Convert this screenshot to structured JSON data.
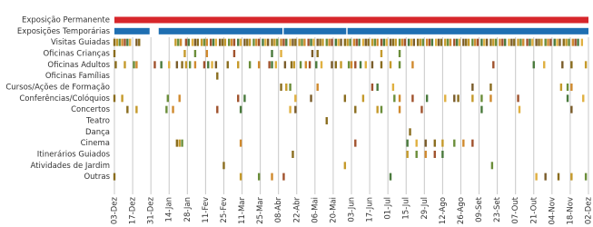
{
  "chart_data": {
    "type": "timeline",
    "xlim": [
      0,
      364
    ],
    "xticks": [
      {
        "value": 0,
        "label": "03-Dez"
      },
      {
        "value": 14,
        "label": "17-Dez"
      },
      {
        "value": 28,
        "label": "31-Dez"
      },
      {
        "value": 42,
        "label": "14-Jan"
      },
      {
        "value": 56,
        "label": "28-Jan"
      },
      {
        "value": 70,
        "label": "11-Fev"
      },
      {
        "value": 84,
        "label": "25-Fev"
      },
      {
        "value": 98,
        "label": "11-Mar"
      },
      {
        "value": 112,
        "label": "25-Mar"
      },
      {
        "value": 126,
        "label": "08-Abr"
      },
      {
        "value": 140,
        "label": "22-Abr"
      },
      {
        "value": 154,
        "label": "06-Mai"
      },
      {
        "value": 168,
        "label": "20-Mai"
      },
      {
        "value": 182,
        "label": "03-Jun"
      },
      {
        "value": 196,
        "label": "17-Jun"
      },
      {
        "value": 210,
        "label": "01-Jul"
      },
      {
        "value": 224,
        "label": "15-Jul"
      },
      {
        "value": 238,
        "label": "29-Jul"
      },
      {
        "value": 252,
        "label": "12-Ago"
      },
      {
        "value": 266,
        "label": "26-Ago"
      },
      {
        "value": 280,
        "label": "09-Set"
      },
      {
        "value": 294,
        "label": "23-Set"
      },
      {
        "value": 308,
        "label": "07-Out"
      },
      {
        "value": 322,
        "label": "21-Out"
      },
      {
        "value": 336,
        "label": "04-Nov"
      },
      {
        "value": 350,
        "label": "18-Nov"
      },
      {
        "value": 364,
        "label": "02-Dez"
      }
    ],
    "grid": true,
    "palette": [
      "#8a6d1f",
      "#c59a2b",
      "#6b8e3a",
      "#d08a2e",
      "#a0522d",
      "#4a7a3d",
      "#e0b040",
      "#7a5c2a"
    ],
    "series": [
      {
        "name": "Exposição Permanente",
        "color": "#d7262b",
        "segments": [
          [
            0,
            364
          ]
        ]
      },
      {
        "name": "Exposições Temporárias",
        "color": "#1f6fb2",
        "segments": [
          [
            0,
            27
          ],
          [
            34,
            129
          ],
          [
            130,
            178
          ],
          [
            179,
            364
          ]
        ]
      },
      {
        "name": "Visitas Guiadas",
        "events": [
          0,
          2,
          4,
          6,
          8,
          10,
          12,
          17,
          19,
          47,
          49,
          51,
          55,
          57,
          60,
          62,
          64,
          67,
          69,
          71,
          74,
          76,
          78,
          81,
          83,
          85,
          88,
          90,
          92,
          95,
          97,
          100,
          102,
          104,
          107,
          109,
          111,
          114,
          116,
          118,
          121,
          123,
          125,
          128,
          130,
          132,
          135,
          137,
          139,
          142,
          144,
          146,
          149,
          151,
          153,
          156,
          158,
          160,
          163,
          165,
          167,
          170,
          172,
          174,
          177,
          179,
          181,
          184,
          186,
          188,
          191,
          193,
          195,
          198,
          200,
          202,
          205,
          207,
          209,
          212,
          214,
          216,
          219,
          221,
          223,
          226,
          228,
          230,
          233,
          235,
          237,
          240,
          242,
          244,
          247,
          249,
          251,
          254,
          256,
          258,
          261,
          263,
          265,
          268,
          270,
          272,
          275,
          277,
          279,
          282,
          284,
          286,
          289,
          291,
          293,
          296,
          298,
          300,
          303,
          305,
          307,
          310,
          312,
          314,
          317,
          319,
          321,
          324,
          326,
          328,
          331,
          333,
          335,
          338,
          340,
          342,
          345,
          347,
          349,
          352,
          354,
          356,
          359
        ]
      },
      {
        "name": "Oficinas Crianças",
        "events": [
          0,
          54,
          62,
          71,
          92,
          121,
          128,
          152,
          156,
          205,
          219
        ]
      },
      {
        "name": "Oficinas Adultos",
        "events": [
          1,
          8,
          15,
          17,
          31,
          36,
          42,
          48,
          52,
          55,
          58,
          62,
          69,
          72,
          75,
          78,
          87,
          95,
          104,
          111,
          119,
          121,
          124,
          131,
          136,
          138,
          143,
          147,
          150,
          155,
          159,
          167,
          170,
          174,
          180,
          182,
          185,
          189,
          193,
          198,
          205,
          212,
          219,
          229,
          291,
          322,
          330,
          344,
          351,
          362
        ]
      },
      {
        "name": "Oficinas Famílias",
        "events": [
          79
        ]
      },
      {
        "name": "Cursos/Ações de Formação",
        "events": [
          128,
          132,
          135,
          156,
          198,
          202,
          214,
          275,
          289,
          343,
          348,
          351
        ]
      },
      {
        "name": "Conferências/Colóquios",
        "events": [
          0,
          6,
          41,
          50,
          95,
          100,
          139,
          151,
          177,
          191,
          215,
          219,
          229,
          240,
          254,
          261,
          264,
          275,
          282,
          289,
          310,
          348,
          360
        ]
      },
      {
        "name": "Concertos",
        "events": [
          10,
          17,
          40,
          45,
          79,
          97,
          135,
          139,
          185,
          202,
          205,
          219,
          236,
          282,
          311,
          351
        ]
      },
      {
        "name": "Teatro",
        "events": [
          163
        ]
      },
      {
        "name": "Dança",
        "events": [
          227
        ]
      },
      {
        "name": "Cinema",
        "events": [
          48,
          50,
          52,
          97,
          185,
          225,
          232,
          239,
          246,
          252,
          261,
          268,
          275
        ]
      },
      {
        "name": "Itinerários Guiados",
        "events": [
          137,
          225,
          232,
          239,
          246,
          252
        ]
      },
      {
        "name": "Atividades de Jardim",
        "events": [
          84,
          177,
          290
        ]
      },
      {
        "name": "Outras",
        "events": [
          0,
          97,
          111,
          121,
          130,
          212,
          324,
          331,
          341,
          351,
          362
        ]
      }
    ]
  }
}
